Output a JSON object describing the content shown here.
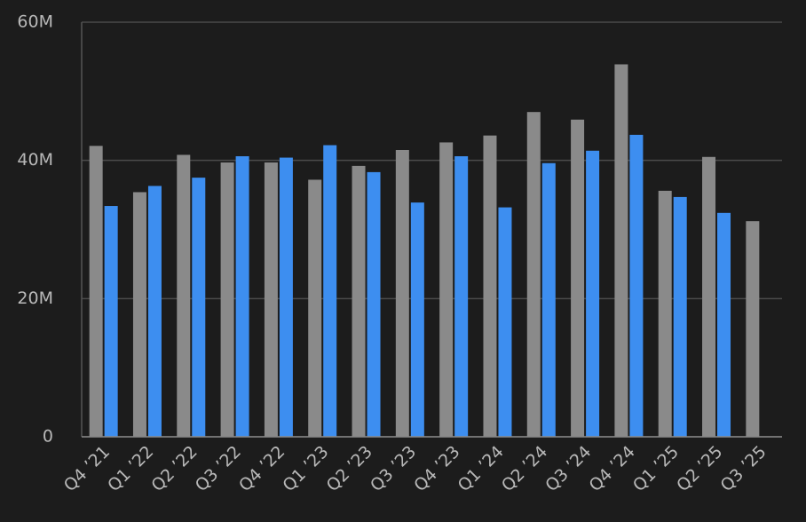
{
  "chart_data": {
    "type": "bar",
    "categories": [
      "Q4 ’21",
      "Q1 ’22",
      "Q2 ’22",
      "Q3 ’22",
      "Q4 ’22",
      "Q1 ’23",
      "Q2 ’23",
      "Q3 ’23",
      "Q4 ’23",
      "Q1 ’24",
      "Q2 ’24",
      "Q3 ’24",
      "Q4 ’24",
      "Q1 ’25",
      "Q2 ’25",
      "Q3 ’25"
    ],
    "series": [
      {
        "color": "#8a8a8a",
        "values": [
          42100000,
          35400000,
          40800000,
          39700000,
          39700000,
          37200000,
          39200000,
          41500000,
          42600000,
          43600000,
          47000000,
          45900000,
          53900000,
          35600000,
          40500000,
          31200000
        ]
      },
      {
        "color": "#3d8ef0",
        "values": [
          33400000,
          36300000,
          37500000,
          40600000,
          40400000,
          42200000,
          38300000,
          33900000,
          40600000,
          33200000,
          39600000,
          41400000,
          43700000,
          34700000,
          32400000,
          null
        ]
      }
    ],
    "ylim": [
      0,
      60000000
    ],
    "yticks": [
      0,
      {
        "value": 20000000,
        "label": "20M"
      },
      {
        "value": 40000000,
        "label": "40M"
      },
      {
        "value": 60000000,
        "label": "60M"
      }
    ],
    "grid": true
  }
}
